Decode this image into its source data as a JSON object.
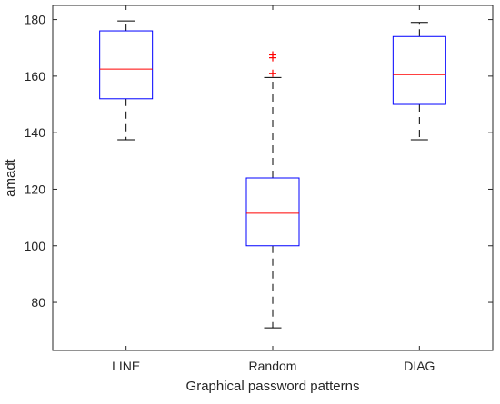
{
  "chart_data": {
    "type": "boxplot",
    "title": "",
    "xlabel": "Graphical password patterns",
    "ylabel": "amadt",
    "categories": [
      "LINE",
      "Random",
      "DIAG"
    ],
    "ylim": [
      63,
      185
    ],
    "yticks": [
      80,
      100,
      120,
      140,
      160,
      180
    ],
    "grid": false,
    "boxes": [
      {
        "category": "LINE",
        "whisker_low": 137.5,
        "q1": 152,
        "median": 162.5,
        "q3": 176,
        "whisker_high": 179.5,
        "outliers": []
      },
      {
        "category": "Random",
        "whisker_low": 71,
        "q1": 100,
        "median": 111.5,
        "q3": 124,
        "whisker_high": 159.5,
        "outliers": [
          161,
          166.5,
          167.5
        ]
      },
      {
        "category": "DIAG",
        "whisker_low": 137.5,
        "q1": 150,
        "median": 160.5,
        "q3": 174,
        "whisker_high": 179,
        "outliers": []
      }
    ],
    "colors": {
      "box": "#0000ff",
      "median": "#ff0000",
      "whisker": "#000000",
      "outlier": "#ff0000",
      "axis": "#262626"
    }
  }
}
